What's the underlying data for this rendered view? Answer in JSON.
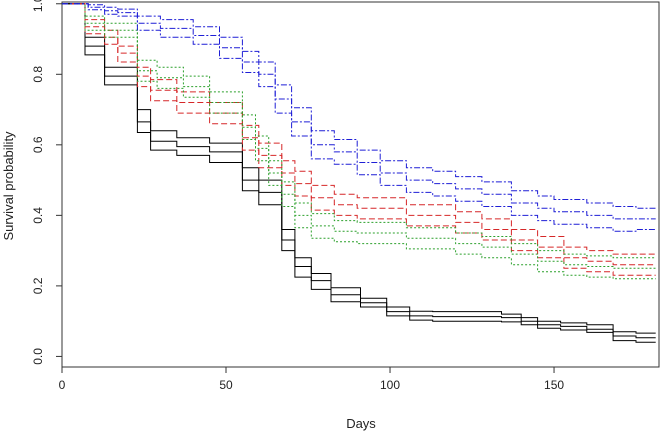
{
  "chart_data": {
    "type": "line",
    "title": "",
    "xlabel": "Days",
    "ylabel": "Survival probability",
    "xlim": [
      0,
      182
    ],
    "ylim": [
      -0.03,
      1.005
    ],
    "xticks": [
      0,
      50,
      100,
      150
    ],
    "yticks": [
      0.0,
      0.2,
      0.4,
      0.6,
      0.8,
      1.0
    ],
    "ytick_labels": [
      "0.0",
      "0.2",
      "0.4",
      "0.6",
      "0.8",
      "1.0"
    ],
    "grid": false,
    "legend": "none",
    "step_plot": true,
    "series": [
      {
        "color": "#000000",
        "dash": "solid",
        "x": [
          0,
          7,
          13,
          23,
          27,
          35,
          45,
          55,
          60,
          67,
          71,
          76,
          82,
          91,
          99,
          106,
          113,
          120,
          128,
          134,
          140,
          145,
          152,
          160,
          168,
          175,
          181
        ],
        "y": [
          1.0,
          0.88,
          0.795,
          0.665,
          0.61,
          0.595,
          0.58,
          0.5,
          0.465,
          0.33,
          0.255,
          0.215,
          0.175,
          0.152,
          0.127,
          0.115,
          0.113,
          0.113,
          0.113,
          0.11,
          0.1,
          0.09,
          0.085,
          0.077,
          0.058,
          0.053,
          0.053
        ]
      },
      {
        "color": "#000000",
        "dash": "solid",
        "x": [
          0,
          7,
          13,
          23,
          27,
          35,
          45,
          55,
          60,
          67,
          71,
          76,
          82,
          91,
          99,
          106,
          113,
          120,
          128,
          134,
          140,
          145,
          152,
          160,
          168,
          175,
          181
        ],
        "y": [
          1.0,
          0.905,
          0.82,
          0.7,
          0.64,
          0.62,
          0.605,
          0.535,
          0.5,
          0.36,
          0.28,
          0.235,
          0.195,
          0.165,
          0.14,
          0.128,
          0.127,
          0.127,
          0.127,
          0.12,
          0.11,
          0.1,
          0.095,
          0.09,
          0.07,
          0.066,
          0.066
        ]
      },
      {
        "color": "#000000",
        "dash": "solid",
        "x": [
          0,
          7,
          13,
          23,
          27,
          35,
          45,
          55,
          60,
          67,
          71,
          76,
          82,
          91,
          99,
          106,
          113,
          120,
          128,
          134,
          140,
          145,
          152,
          160,
          168,
          175,
          181
        ],
        "y": [
          1.0,
          0.855,
          0.77,
          0.635,
          0.585,
          0.57,
          0.55,
          0.47,
          0.43,
          0.3,
          0.225,
          0.19,
          0.155,
          0.14,
          0.115,
          0.103,
          0.1,
          0.1,
          0.1,
          0.098,
          0.09,
          0.08,
          0.075,
          0.068,
          0.045,
          0.04,
          0.04
        ]
      },
      {
        "color": "#d62728",
        "dash": "dashed",
        "x": [
          0,
          7,
          13,
          17,
          23,
          27,
          35,
          45,
          55,
          60,
          67,
          71,
          76,
          83,
          90,
          105,
          120,
          128,
          137,
          145,
          153,
          160,
          168,
          175,
          181
        ],
        "y": [
          1.0,
          0.935,
          0.905,
          0.86,
          0.795,
          0.755,
          0.72,
          0.69,
          0.62,
          0.57,
          0.52,
          0.49,
          0.45,
          0.43,
          0.42,
          0.4,
          0.38,
          0.36,
          0.33,
          0.31,
          0.28,
          0.27,
          0.26,
          0.26,
          0.26
        ]
      },
      {
        "color": "#d62728",
        "dash": "dashed",
        "x": [
          0,
          7,
          13,
          17,
          23,
          27,
          35,
          45,
          55,
          60,
          67,
          71,
          76,
          83,
          90,
          105,
          120,
          128,
          137,
          145,
          153,
          160,
          168,
          175,
          181
        ],
        "y": [
          1.0,
          0.955,
          0.925,
          0.88,
          0.82,
          0.785,
          0.75,
          0.72,
          0.655,
          0.605,
          0.555,
          0.525,
          0.485,
          0.46,
          0.45,
          0.43,
          0.41,
          0.39,
          0.36,
          0.34,
          0.31,
          0.3,
          0.29,
          0.29,
          0.29
        ]
      },
      {
        "color": "#d62728",
        "dash": "dashed",
        "x": [
          0,
          7,
          13,
          17,
          23,
          27,
          35,
          45,
          55,
          60,
          67,
          71,
          76,
          83,
          90,
          105,
          120,
          128,
          137,
          145,
          153,
          160,
          168,
          175,
          181
        ],
        "y": [
          1.0,
          0.915,
          0.885,
          0.835,
          0.765,
          0.725,
          0.69,
          0.66,
          0.585,
          0.535,
          0.485,
          0.455,
          0.415,
          0.4,
          0.39,
          0.37,
          0.35,
          0.33,
          0.3,
          0.28,
          0.25,
          0.24,
          0.23,
          0.23,
          0.23
        ]
      },
      {
        "color": "#2ca02c",
        "dash": "dotted",
        "x": [
          0,
          7,
          13,
          23,
          29,
          37,
          45,
          55,
          59,
          63,
          67,
          71,
          76,
          83,
          90,
          105,
          120,
          128,
          137,
          145,
          153,
          160,
          168,
          175,
          181
        ],
        "y": [
          1.0,
          0.945,
          0.925,
          0.81,
          0.79,
          0.765,
          0.72,
          0.65,
          0.59,
          0.52,
          0.46,
          0.4,
          0.37,
          0.355,
          0.35,
          0.335,
          0.32,
          0.31,
          0.29,
          0.27,
          0.26,
          0.255,
          0.25,
          0.25,
          0.25
        ]
      },
      {
        "color": "#2ca02c",
        "dash": "dotted",
        "x": [
          0,
          7,
          13,
          23,
          29,
          37,
          45,
          55,
          59,
          63,
          67,
          71,
          76,
          83,
          90,
          105,
          120,
          128,
          137,
          145,
          153,
          160,
          168,
          175,
          181
        ],
        "y": [
          1.0,
          0.965,
          0.945,
          0.84,
          0.82,
          0.795,
          0.75,
          0.685,
          0.625,
          0.555,
          0.495,
          0.435,
          0.405,
          0.385,
          0.38,
          0.365,
          0.35,
          0.34,
          0.32,
          0.3,
          0.29,
          0.285,
          0.28,
          0.28,
          0.28
        ]
      },
      {
        "color": "#2ca02c",
        "dash": "dotted",
        "x": [
          0,
          7,
          13,
          23,
          29,
          37,
          45,
          55,
          59,
          63,
          67,
          71,
          76,
          83,
          90,
          105,
          120,
          128,
          137,
          145,
          153,
          160,
          168,
          175,
          181
        ],
        "y": [
          1.0,
          0.925,
          0.905,
          0.78,
          0.76,
          0.735,
          0.69,
          0.615,
          0.555,
          0.485,
          0.425,
          0.365,
          0.335,
          0.325,
          0.32,
          0.305,
          0.29,
          0.28,
          0.26,
          0.24,
          0.23,
          0.225,
          0.22,
          0.22,
          0.22
        ]
      },
      {
        "color": "#1f1fd6",
        "dash": "dashdot",
        "x": [
          0,
          8,
          13,
          17,
          23,
          30,
          40,
          48,
          55,
          60,
          65,
          70,
          76,
          83,
          90,
          97,
          105,
          113,
          120,
          128,
          137,
          145,
          150,
          160,
          168,
          175,
          181
        ],
        "y": [
          1.0,
          0.99,
          0.98,
          0.975,
          0.945,
          0.93,
          0.91,
          0.875,
          0.835,
          0.8,
          0.73,
          0.665,
          0.6,
          0.58,
          0.55,
          0.52,
          0.5,
          0.49,
          0.475,
          0.46,
          0.435,
          0.42,
          0.41,
          0.4,
          0.39,
          0.39,
          0.39
        ]
      },
      {
        "color": "#1f1fd6",
        "dash": "dashdot",
        "x": [
          0,
          8,
          13,
          17,
          23,
          30,
          40,
          48,
          55,
          60,
          65,
          70,
          76,
          83,
          90,
          97,
          105,
          113,
          120,
          128,
          137,
          145,
          150,
          160,
          168,
          175,
          181
        ],
        "y": [
          1.0,
          0.997,
          0.99,
          0.985,
          0.965,
          0.955,
          0.935,
          0.905,
          0.865,
          0.835,
          0.77,
          0.705,
          0.64,
          0.615,
          0.585,
          0.555,
          0.535,
          0.525,
          0.51,
          0.495,
          0.47,
          0.455,
          0.445,
          0.435,
          0.425,
          0.42,
          0.42
        ]
      },
      {
        "color": "#1f1fd6",
        "dash": "dashdot",
        "x": [
          0,
          8,
          13,
          17,
          23,
          30,
          40,
          48,
          55,
          60,
          65,
          70,
          76,
          83,
          90,
          97,
          105,
          113,
          120,
          128,
          137,
          145,
          150,
          160,
          168,
          175,
          181
        ],
        "y": [
          1.0,
          0.983,
          0.97,
          0.965,
          0.925,
          0.905,
          0.885,
          0.845,
          0.805,
          0.765,
          0.69,
          0.625,
          0.56,
          0.545,
          0.515,
          0.485,
          0.465,
          0.455,
          0.44,
          0.425,
          0.4,
          0.385,
          0.375,
          0.365,
          0.355,
          0.36,
          0.36
        ]
      }
    ]
  }
}
